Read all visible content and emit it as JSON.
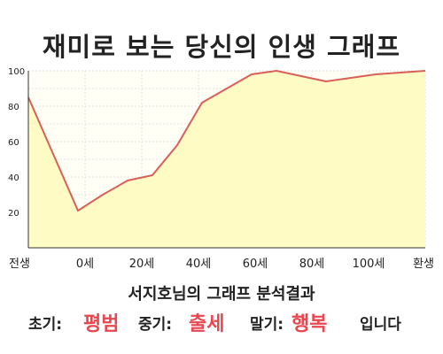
{
  "title": "재미로 보는 당신의 인생 그래프",
  "chart_data": {
    "type": "area",
    "categories": [
      "전생",
      "0세",
      "20세",
      "40세",
      "60세",
      "80세",
      "100세",
      "환생"
    ],
    "x": [
      -1,
      0,
      0.5,
      1,
      1.5,
      2,
      2.5,
      3,
      3.5,
      4,
      4.5,
      5,
      5.5,
      6,
      7
    ],
    "y": [
      85,
      21,
      30,
      38,
      41,
      58,
      82,
      90,
      98,
      100,
      97,
      94,
      96,
      98,
      100
    ],
    "ylim": [
      0,
      100
    ],
    "yticks": [
      20,
      40,
      60,
      80,
      100
    ],
    "grid": true,
    "line_color": "#d9605a",
    "fill_color": "#fffbc4"
  },
  "analysis_title": "서지호님의 그래프 분석결과",
  "result": {
    "early_label": "초기:",
    "early_value": "평범",
    "mid_label": "중기:",
    "mid_value": "출세",
    "late_label": "말기:",
    "late_value": "행복",
    "suffix": "입니다"
  }
}
